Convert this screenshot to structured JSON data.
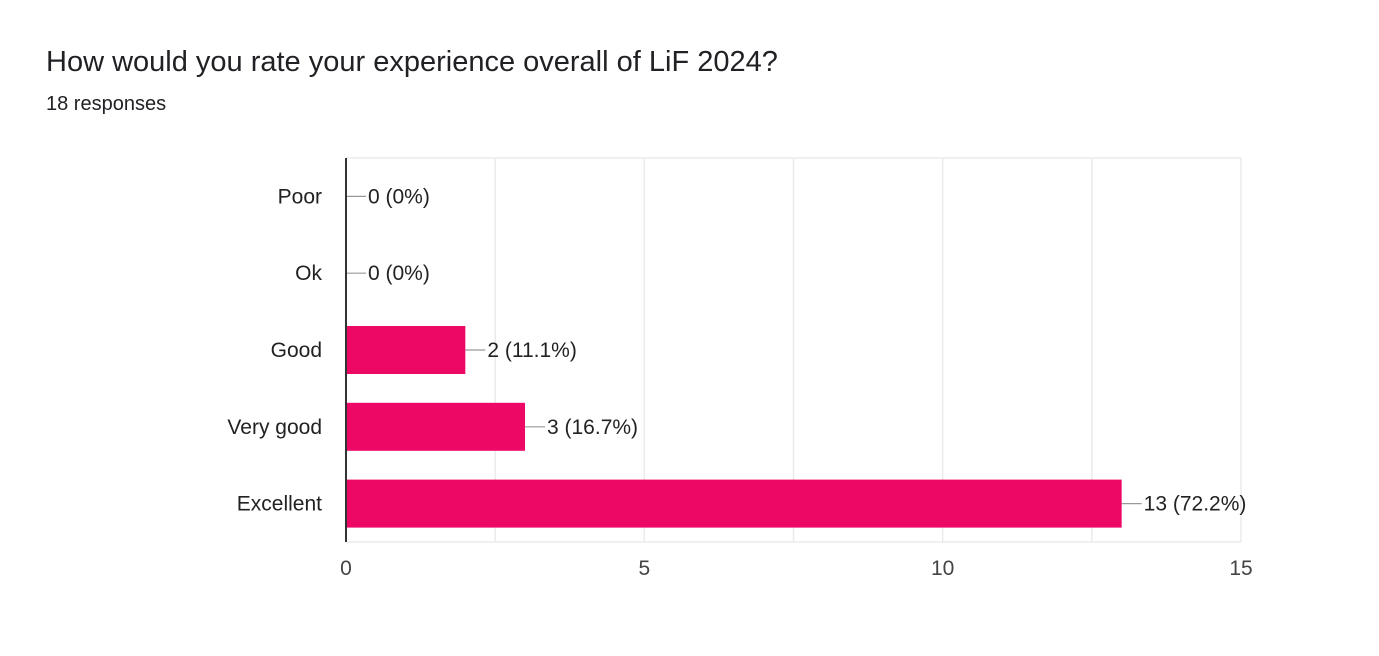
{
  "question": {
    "title": "How would you rate your experience overall of LiF 2024?",
    "responses": "18 responses"
  },
  "colors": {
    "bar": "#EE0866",
    "grid": "#EBEBEB",
    "axis": "#333333",
    "leader": "#999999"
  },
  "chart_data": {
    "type": "bar",
    "orientation": "horizontal",
    "categories": [
      "Poor",
      "Ok",
      "Good",
      "Very good",
      "Excellent"
    ],
    "values": [
      0,
      0,
      2,
      3,
      13
    ],
    "data_labels": [
      "0 (0%)",
      "0 (0%)",
      "2 (11.1%)",
      "3 (16.7%)",
      "13 (72.2%)"
    ],
    "xlim": [
      0,
      15
    ],
    "x_ticks": [
      0,
      5,
      10,
      15
    ],
    "x_tick_labels": [
      "0",
      "5",
      "10",
      "15"
    ],
    "grid": true,
    "title": "",
    "xlabel": "",
    "ylabel": ""
  }
}
